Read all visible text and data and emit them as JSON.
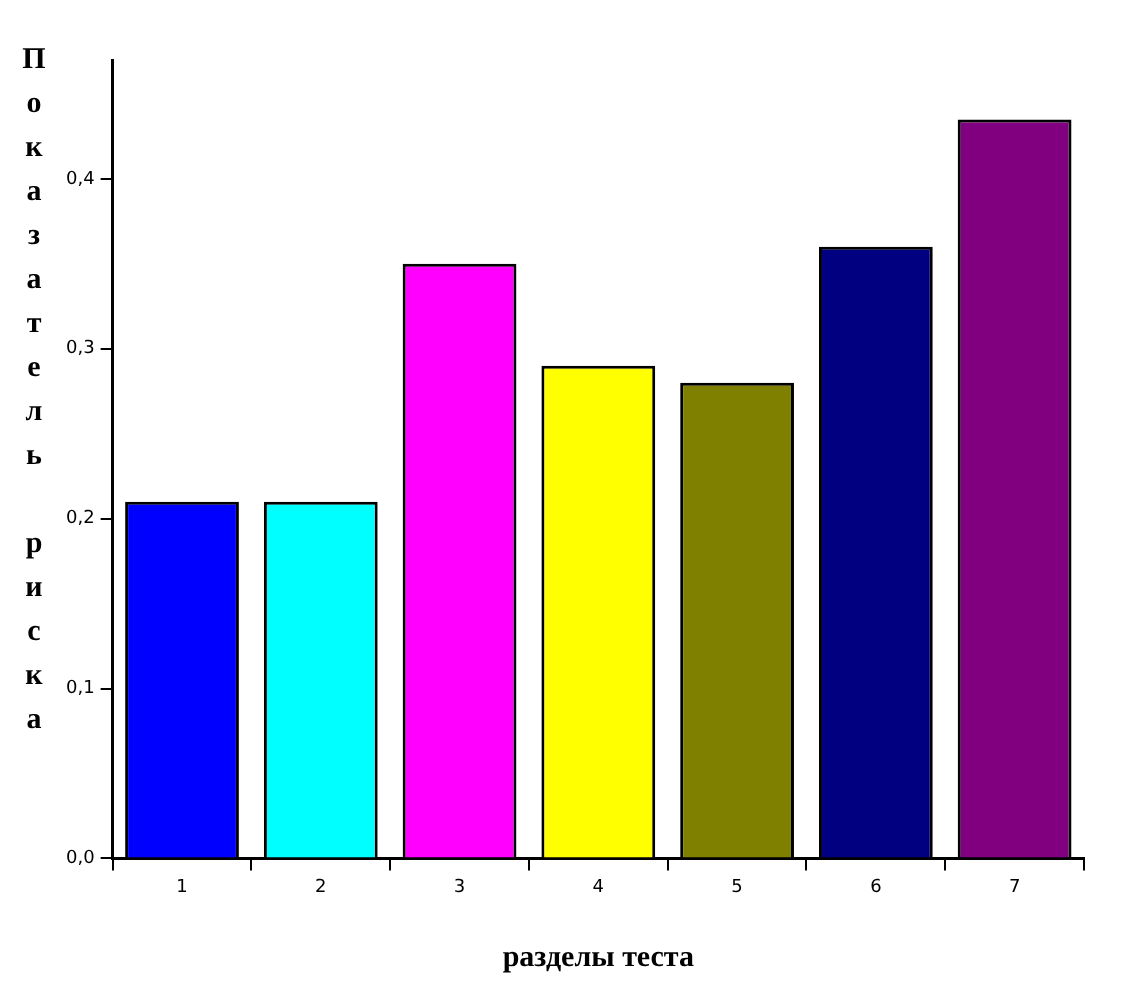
{
  "chart_data": {
    "type": "bar",
    "xlabel": "разделы теста",
    "ylabel": "Показатель риска",
    "categories": [
      "1",
      "2",
      "3",
      "4",
      "5",
      "6",
      "7"
    ],
    "values": [
      0.21,
      0.21,
      0.35,
      0.29,
      0.28,
      0.36,
      0.435
    ],
    "colors": [
      "#0000ff",
      "#00ffff",
      "#ff00ff",
      "#ffff00",
      "#808000",
      "#000080",
      "#800080"
    ],
    "ylim": [
      0,
      0.47
    ],
    "yticks": [
      {
        "value": 0,
        "label": "0,0"
      },
      {
        "value": 0.1,
        "label": "0,1"
      },
      {
        "value": 0.2,
        "label": "0,2"
      },
      {
        "value": 0.3,
        "label": "0,3"
      },
      {
        "value": 0.4,
        "label": "0,4"
      }
    ],
    "grid": false,
    "legend": false
  }
}
